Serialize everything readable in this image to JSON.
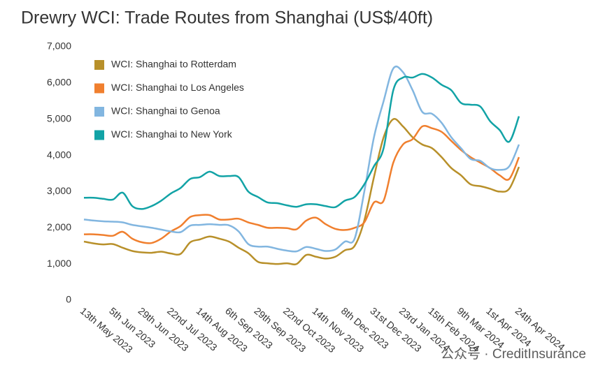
{
  "chart_data": {
    "type": "line",
    "title": "Drewry WCI: Trade Routes from Shanghai (US$/40ft)",
    "watermark": "公众号 · CreditInsurance",
    "categories": [
      "13th May 2023",
      null,
      null,
      "5th Jun 2023",
      null,
      null,
      "29th Jun 2023",
      null,
      null,
      "22nd Jul 2023",
      null,
      null,
      "14th Aug 2023",
      null,
      null,
      "6th Sep 2023",
      null,
      null,
      "29th Sep 2023",
      null,
      null,
      "22nd Oct 2023",
      null,
      null,
      "14th Nov 2023",
      null,
      null,
      "8th Dec 2023",
      null,
      null,
      "31st Dec 2023",
      null,
      null,
      "23rd Jan 2024",
      null,
      null,
      "15th Feb 2024",
      null,
      null,
      "9th Mar 2024",
      null,
      null,
      "1st Apr 2024",
      null,
      null,
      "24th Apr 2024"
    ],
    "series": [
      {
        "name": "WCI: Shanghai to Rotterdam",
        "color": "#b8902a",
        "values": [
          1620,
          1570,
          1540,
          1550,
          1450,
          1360,
          1320,
          1310,
          1340,
          1290,
          1280,
          1600,
          1680,
          1760,
          1700,
          1620,
          1450,
          1300,
          1060,
          1020,
          1000,
          1020,
          1000,
          1250,
          1200,
          1150,
          1200,
          1380,
          1500,
          2200,
          3400,
          4500,
          5000,
          4800,
          4500,
          4300,
          4200,
          3950,
          3650,
          3450,
          3200,
          3150,
          3080,
          3000,
          3080,
          3680
        ]
      },
      {
        "name": "WCI: Shanghai to Los Angeles",
        "color": "#f07f2e",
        "values": [
          1820,
          1820,
          1800,
          1780,
          1890,
          1700,
          1600,
          1580,
          1700,
          1900,
          2050,
          2300,
          2350,
          2350,
          2230,
          2230,
          2250,
          2150,
          2080,
          2000,
          2000,
          1990,
          1960,
          2200,
          2280,
          2100,
          1970,
          1940,
          2000,
          2150,
          2700,
          2750,
          3800,
          4300,
          4450,
          4800,
          4750,
          4650,
          4400,
          4150,
          3950,
          3800,
          3650,
          3450,
          3350,
          3950
        ]
      },
      {
        "name": "WCI: Shanghai to Genoa",
        "color": "#82b6e0",
        "values": [
          2230,
          2200,
          2180,
          2170,
          2150,
          2080,
          2040,
          2000,
          1950,
          1900,
          1880,
          2060,
          2080,
          2100,
          2080,
          2070,
          1900,
          1550,
          1480,
          1480,
          1420,
          1370,
          1350,
          1470,
          1420,
          1360,
          1400,
          1620,
          1700,
          3000,
          4500,
          5500,
          6400,
          6300,
          5800,
          5200,
          5150,
          4900,
          4500,
          4200,
          3900,
          3850,
          3650,
          3600,
          3700,
          4300
        ]
      },
      {
        "name": "WCI: Shanghai to New York",
        "color": "#12a3a6",
        "values": [
          2830,
          2830,
          2800,
          2780,
          2970,
          2600,
          2520,
          2600,
          2750,
          2950,
          3100,
          3350,
          3400,
          3550,
          3430,
          3430,
          3400,
          3000,
          2850,
          2700,
          2680,
          2620,
          2580,
          2650,
          2650,
          2600,
          2570,
          2750,
          2850,
          3200,
          3700,
          4200,
          5800,
          6150,
          6150,
          6250,
          6150,
          5950,
          5800,
          5450,
          5400,
          5350,
          4950,
          4700,
          4380,
          5080
        ]
      }
    ],
    "ylim": [
      0,
      7000
    ],
    "yticks": [
      0,
      {
        "value": 1000,
        "label": "1,000"
      },
      {
        "value": 2000,
        "label": "2,000"
      },
      {
        "value": 3000,
        "label": "3,000"
      },
      {
        "value": 4000,
        "label": "4,000"
      },
      {
        "value": 5000,
        "label": "5,000"
      },
      {
        "value": 6000,
        "label": "6,000"
      },
      {
        "value": 7000,
        "label": "7,000"
      }
    ],
    "grid": false,
    "legend": "top-left"
  }
}
